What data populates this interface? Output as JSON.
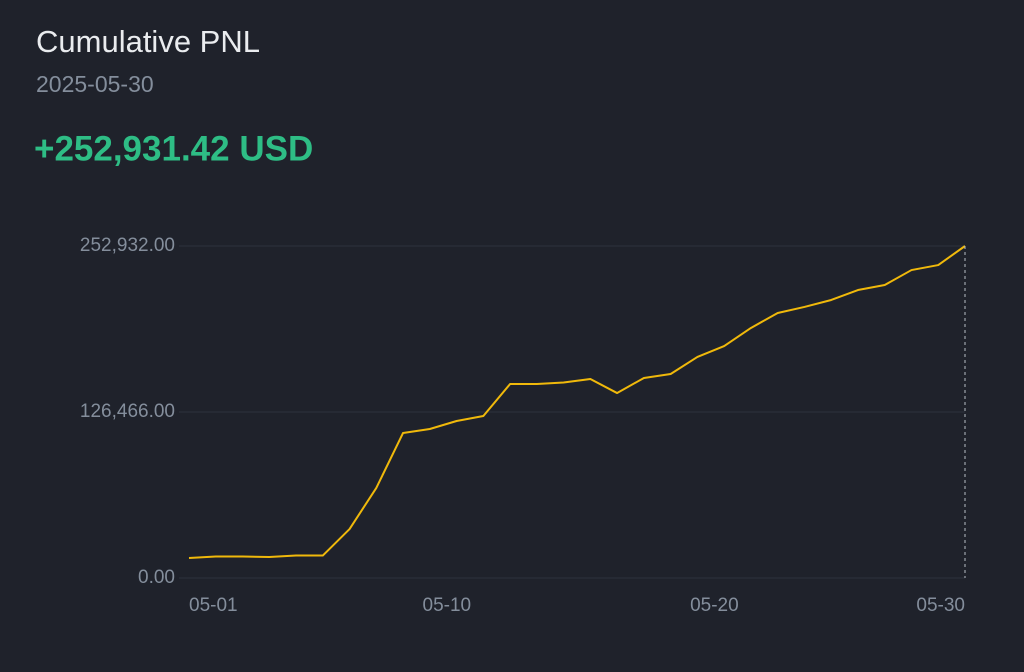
{
  "chart_data": {
    "type": "line",
    "title": "Cumulative PNL",
    "subtitle": "2025-05-30",
    "summary": "+252,931.42 USD",
    "categories": [
      "05-01",
      null,
      null,
      null,
      null,
      null,
      null,
      null,
      null,
      "05-10",
      null,
      null,
      null,
      null,
      null,
      null,
      null,
      null,
      null,
      "05-20",
      null,
      null,
      null,
      null,
      null,
      null,
      null,
      null,
      null,
      "05-30"
    ],
    "series": [
      {
        "name": "Cumulative PNL",
        "color": "#f0b90b",
        "values": [
          15200,
          16400,
          16400,
          16000,
          17100,
          17100,
          37300,
          68600,
          110500,
          113500,
          119600,
          123400,
          147800,
          147800,
          148900,
          151600,
          140900,
          152400,
          155400,
          168400,
          176700,
          190500,
          201900,
          206500,
          211800,
          219400,
          223200,
          234600,
          238400,
          252931.42
        ]
      }
    ],
    "ylim": [
      0,
      252932
    ],
    "yticks": [
      {
        "value": 0,
        "label": "0.00"
      },
      {
        "value": 126466,
        "label": "126,466.00"
      },
      {
        "value": 252932,
        "label": "252,932.00"
      }
    ],
    "grid": true
  }
}
